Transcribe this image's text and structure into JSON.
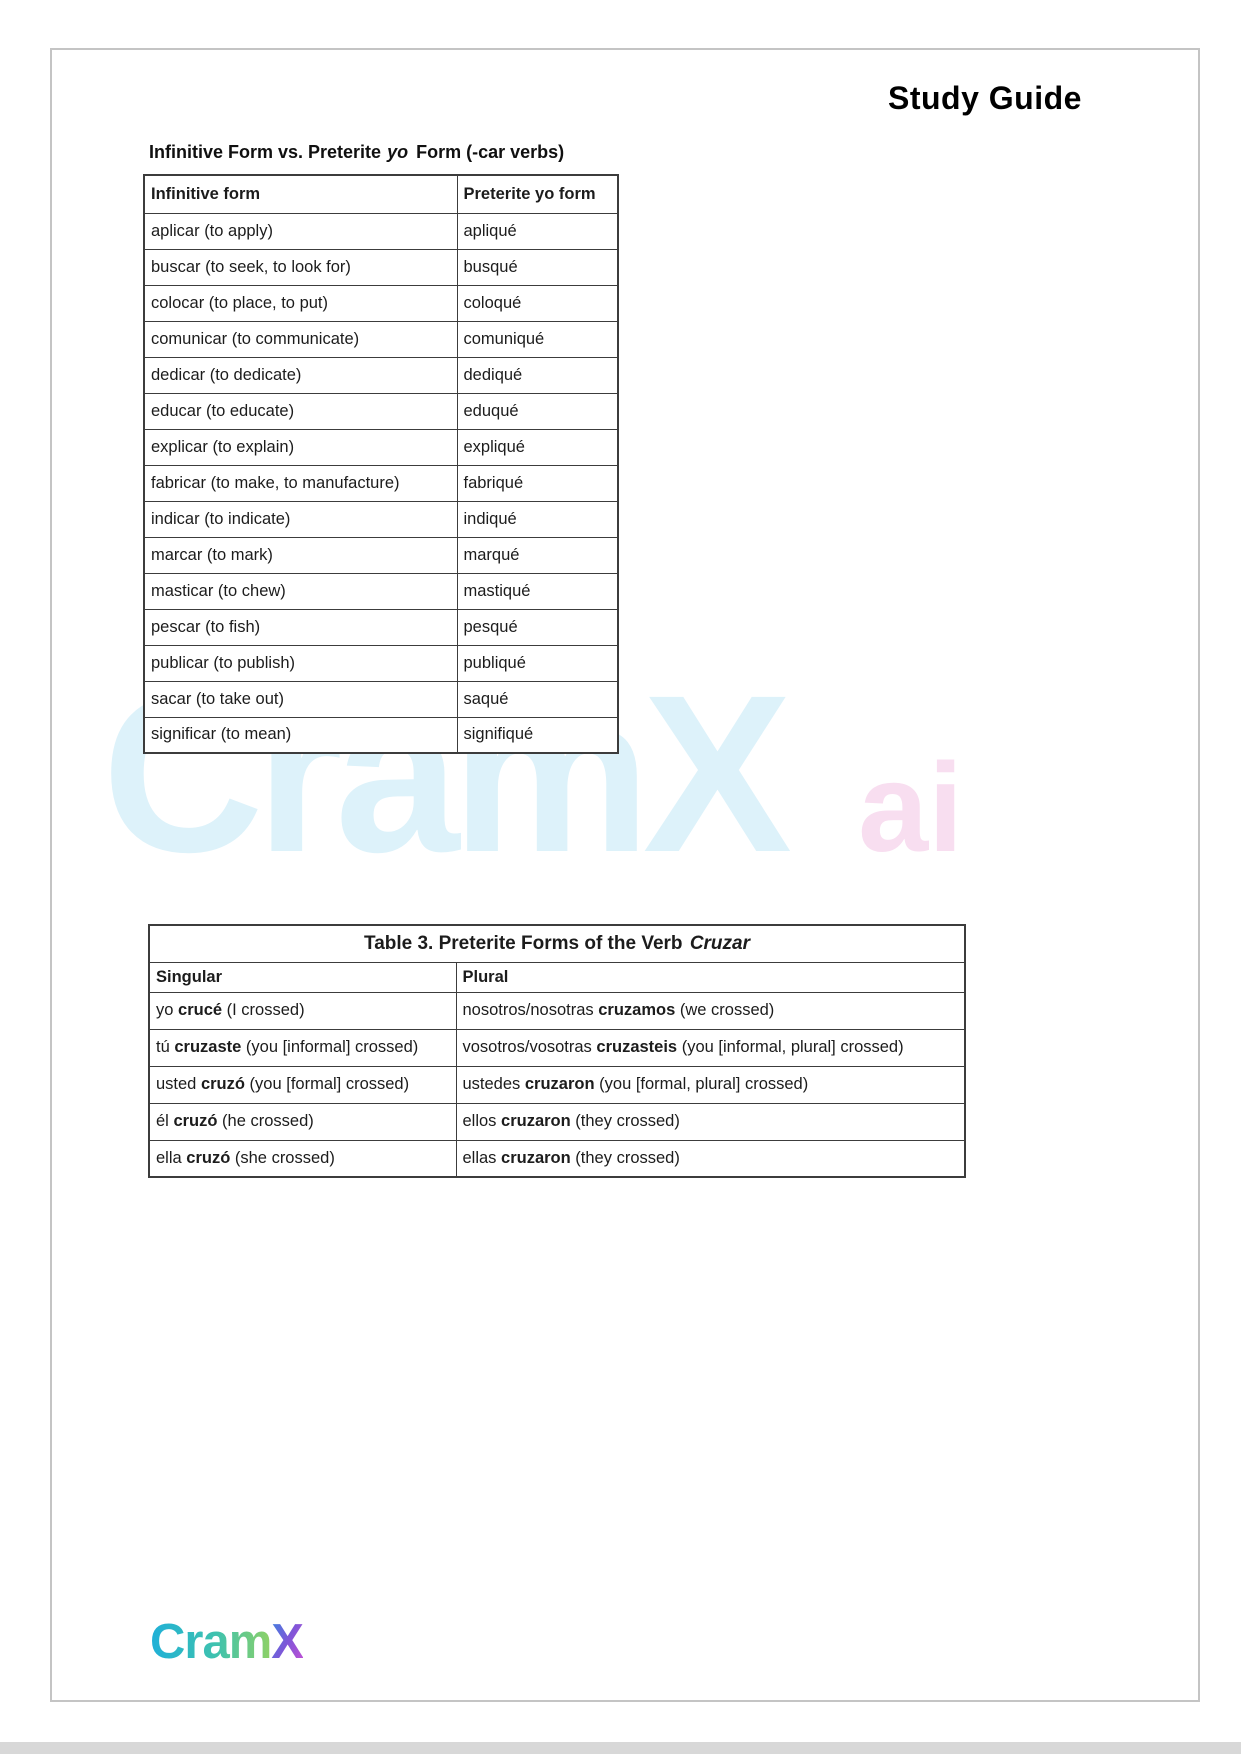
{
  "header": {
    "title": "Study Guide"
  },
  "table1": {
    "caption": {
      "pre": "Infinitive Form vs. Preterite",
      "italic": "yo",
      "post": "Form (-car verbs)"
    },
    "col_headers": [
      "Infinitive form",
      "Preterite yo form"
    ],
    "rows": [
      [
        "aplicar (to apply)",
        "apliqué"
      ],
      [
        "buscar (to seek, to look for)",
        "busqué"
      ],
      [
        "colocar (to place, to put)",
        "coloqué"
      ],
      [
        "comunicar (to communicate)",
        "comuniqué"
      ],
      [
        "dedicar (to dedicate)",
        "dediqué"
      ],
      [
        "educar (to educate)",
        "eduqué"
      ],
      [
        "explicar (to explain)",
        "expliqué"
      ],
      [
        "fabricar (to make, to manufacture)",
        "fabriqué"
      ],
      [
        "indicar (to indicate)",
        "indiqué"
      ],
      [
        "marcar (to mark)",
        "marqué"
      ],
      [
        "masticar (to chew)",
        "mastiqué"
      ],
      [
        "pescar (to fish)",
        "pesqué"
      ],
      [
        "publicar (to publish)",
        "publiqué"
      ],
      [
        "sacar (to take out)",
        "saqué"
      ],
      [
        "significar (to mean)",
        "signifiqué"
      ]
    ]
  },
  "table3": {
    "title": {
      "pre": "Table 3. Preterite Forms of the Verb",
      "italic": "Cruzar"
    },
    "col_headers": [
      "Singular",
      "Plural"
    ],
    "rows": [
      {
        "singular": [
          [
            "yo ",
            0
          ],
          [
            "crucé",
            1
          ],
          [
            " (I crossed)",
            0
          ]
        ],
        "plural": [
          [
            "nosotros/nosotras ",
            0
          ],
          [
            "cruzamos",
            1
          ],
          [
            " (we crossed)",
            0
          ]
        ]
      },
      {
        "singular": [
          [
            "tú ",
            0
          ],
          [
            "cruzaste",
            1
          ],
          [
            " (you [informal] crossed)",
            0
          ]
        ],
        "plural": [
          [
            "vosotros/vosotras ",
            0
          ],
          [
            "cruzasteis",
            1
          ],
          [
            " (you [informal, plural] crossed)",
            0
          ]
        ]
      },
      {
        "singular": [
          [
            "usted ",
            0
          ],
          [
            "cruzó",
            1
          ],
          [
            " (you [formal] crossed)",
            0
          ]
        ],
        "plural": [
          [
            "ustedes ",
            0
          ],
          [
            "cruzaron",
            1
          ],
          [
            " (you [formal, plural] crossed)",
            0
          ]
        ]
      },
      {
        "singular": [
          [
            "él ",
            0
          ],
          [
            "cruzó",
            1
          ],
          [
            " (he crossed)",
            0
          ]
        ],
        "plural": [
          [
            "ellos ",
            0
          ],
          [
            "cruzaron",
            1
          ],
          [
            " (they crossed)",
            0
          ]
        ]
      },
      {
        "singular": [
          [
            "ella ",
            0
          ],
          [
            "cruzó",
            1
          ],
          [
            " (she crossed)",
            0
          ]
        ],
        "plural": [
          [
            "ellas ",
            0
          ],
          [
            "cruzaron",
            1
          ],
          [
            " (they crossed)",
            0
          ]
        ]
      }
    ]
  },
  "watermark": {
    "main": "CramX",
    "suffix": "ai",
    "main_color": "#ddf2fa",
    "suffix_color": "#f8def0"
  },
  "logo": {
    "part1": "Cram",
    "part2": "X",
    "cram_gradient": [
      "#1fb0d8",
      "#3fc2ae",
      "#8ed166"
    ],
    "x_gradient": [
      "#3a86e0",
      "#7e57d8",
      "#c94fd4"
    ]
  },
  "colors": {
    "table_border": "#3c3c3c",
    "card_border": "#c4c4c4",
    "page_edge": "#d8d8d8"
  }
}
